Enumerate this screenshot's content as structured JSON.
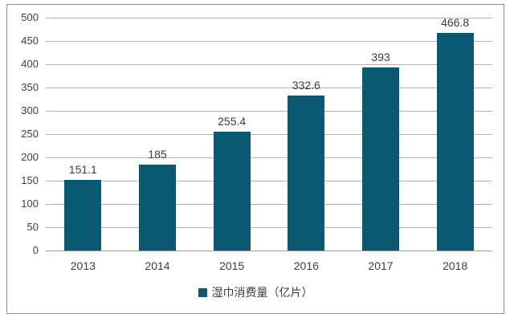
{
  "chart_data": {
    "type": "bar",
    "title": "",
    "xlabel": "",
    "ylabel": "",
    "categories": [
      "2013",
      "2014",
      "2015",
      "2016",
      "2017",
      "2018"
    ],
    "values": [
      151.1,
      185,
      255.4,
      332.6,
      393,
      466.8
    ],
    "value_labels": [
      "151.1",
      "185",
      "255.4",
      "332.6",
      "393",
      "466.8"
    ],
    "ylim": [
      0,
      500
    ],
    "ytick_step": 50,
    "yticks": [
      500,
      450,
      400,
      350,
      300,
      250,
      200,
      150,
      100,
      50,
      0
    ],
    "grid": true,
    "legend_label": "湿巾消费量（亿片）",
    "legend_position": "bottom",
    "colors": {
      "bar": "#0a5872",
      "gridline": "#b3b3b3",
      "baseline": "#9a9a9a",
      "frame_border": "#8f8f8f",
      "text": "#3f3f3f",
      "background": "#ffffff"
    }
  }
}
